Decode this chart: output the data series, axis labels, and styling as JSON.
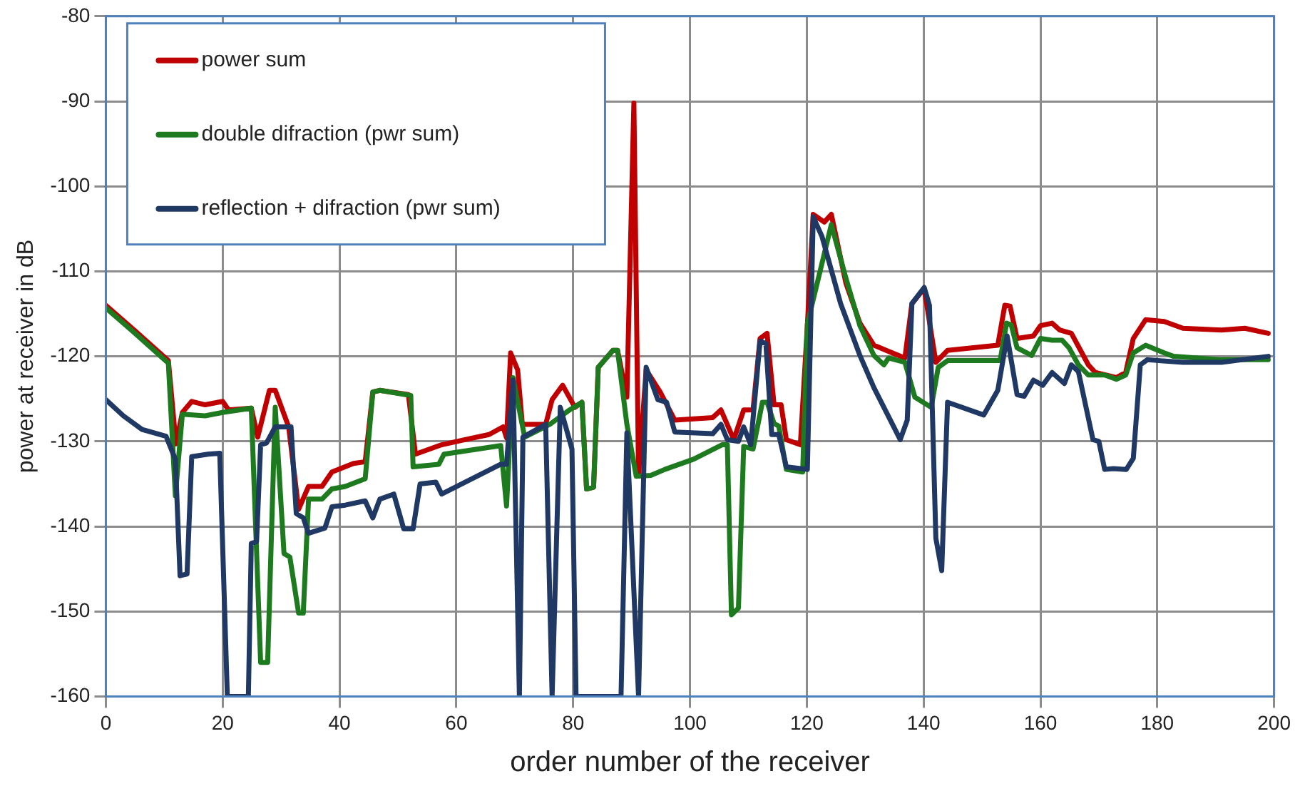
{
  "chart_data": {
    "type": "line",
    "xlabel": "order number of the receiver",
    "ylabel": "power at receiver in dB",
    "xlim": [
      0,
      200
    ],
    "ylim": [
      -160,
      -80
    ],
    "xticks": [
      0,
      20,
      40,
      60,
      80,
      100,
      120,
      140,
      160,
      180,
      200
    ],
    "yticks": [
      -160,
      -150,
      -140,
      -130,
      -120,
      -110,
      -100,
      -90,
      -80
    ],
    "grid": true,
    "legend": "top left",
    "marker": "none",
    "line_style": "solid",
    "series": [
      {
        "name": "power sum",
        "color": "#c00000",
        "x": [
          0,
          5,
          10.7,
          12,
          13.1,
          14.7,
          17,
          20,
          21,
          24.9,
          26,
          28,
          29,
          31.3,
          33,
          34.7,
          37,
          38.7,
          42.4,
          44.4,
          45.7,
          46.9,
          51.8,
          53,
          57.5,
          61.5,
          65.6,
          68,
          68.6,
          69.3,
          70.5,
          71.3,
          75.3,
          76.4,
          78.2,
          80.3,
          81.5,
          82.3,
          83.5,
          84.3,
          86.8,
          87.6,
          89.2,
          90.4,
          91.2,
          92.5,
          94.9,
          97.4,
          103.9,
          105.3,
          107.5,
          109.2,
          110.8,
          112,
          113.2,
          114.4,
          115.6,
          116.5,
          118.9,
          120.1,
          121.1,
          123,
          124.2,
          126.7,
          129.1,
          131.5,
          133.6,
          136.8,
          138,
          140.1,
          142.1,
          144.1,
          152.7,
          153.9,
          154.8,
          156,
          158.8,
          160,
          162,
          163.3,
          165.3,
          168.2,
          169.4,
          173,
          174.6,
          175.9,
          178,
          181.2,
          184.4,
          191,
          195,
          199
        ],
        "values": [
          -114,
          -117,
          -120.5,
          -130.3,
          -126.6,
          -125.3,
          -125.7,
          -125.3,
          -126.3,
          -126.1,
          -129.5,
          -124,
          -124,
          -128.3,
          -138,
          -135.3,
          -135.3,
          -133.6,
          -132.6,
          -132.4,
          -124.2,
          -124,
          -124.5,
          -131.5,
          -130.4,
          -129.8,
          -129.2,
          -128.3,
          -129.6,
          -119.6,
          -121.6,
          -128,
          -128,
          -125.1,
          -123.4,
          -126,
          -125.4,
          -135.6,
          -135.4,
          -121.3,
          -119.3,
          -119.3,
          -124.8,
          -90.2,
          -133.9,
          -121.6,
          -124.2,
          -127.5,
          -127.2,
          -126.3,
          -129.8,
          -126.3,
          -126.3,
          -117.9,
          -117.3,
          -125.7,
          -125.7,
          -129.8,
          -130.4,
          -116.4,
          -103.3,
          -104.2,
          -103.3,
          -111.4,
          -116.1,
          -118.7,
          -119.3,
          -120.2,
          -113.8,
          -112,
          -120.7,
          -119.3,
          -118.7,
          -114,
          -114.1,
          -117.9,
          -117.6,
          -116.4,
          -116.1,
          -116.9,
          -117.3,
          -121,
          -121.9,
          -122.5,
          -121.9,
          -117.9,
          -115.7,
          -115.9,
          -116.7,
          -116.9,
          -116.7,
          -117.3
        ]
      },
      {
        "name": "double difraction (pwr sum)",
        "color": "#1e7a1e",
        "x": [
          0,
          5,
          10.7,
          11.9,
          13.1,
          17,
          20,
          24.9,
          26.5,
          27.7,
          29,
          30.5,
          31.5,
          33,
          33.8,
          34.7,
          37,
          38.7,
          41,
          44.4,
          45.7,
          46.9,
          52.2,
          52.6,
          57,
          57.9,
          67.6,
          68.6,
          69.7,
          71.7,
          76,
          79.4,
          81.5,
          82.3,
          83.5,
          84.3,
          86.8,
          87.6,
          89.2,
          90.8,
          93.3,
          95.7,
          100.6,
          105.5,
          106.4,
          107.1,
          108.3,
          109.2,
          110.8,
          112.4,
          113.2,
          114.4,
          115.2,
          116.5,
          119.3,
          120.1,
          124.2,
          126.7,
          129.1,
          131.5,
          133.2,
          134,
          136.8,
          138.5,
          141.3,
          142.5,
          144.1,
          153.1,
          154.2,
          155,
          156,
          158.5,
          160,
          162,
          163.7,
          164.9,
          166.5,
          168.2,
          171,
          173,
          174.6,
          175.9,
          178,
          181.2,
          182.8,
          191,
          199
        ],
        "values": [
          -114.3,
          -117.3,
          -120.8,
          -136.4,
          -126.8,
          -127,
          -126.6,
          -126.1,
          -156,
          -156,
          -126,
          -143.2,
          -143.6,
          -150.2,
          -150.2,
          -136.8,
          -136.8,
          -135.6,
          -135.3,
          -134.4,
          -124.2,
          -124,
          -124.6,
          -133,
          -132.7,
          -131.5,
          -130.5,
          -137.6,
          -122.5,
          -129.5,
          -128,
          -126.3,
          -125.4,
          -135.6,
          -135.4,
          -121.3,
          -119.3,
          -119.3,
          -128,
          -134.1,
          -134,
          -133.3,
          -132.1,
          -130.4,
          -130.4,
          -150.4,
          -149.6,
          -130.6,
          -130.9,
          -125.4,
          -125.4,
          -127.9,
          -128.2,
          -133.3,
          -133.6,
          -116.2,
          -104.5,
          -110.8,
          -116.4,
          -119.9,
          -121,
          -120.2,
          -120.7,
          -124.8,
          -126,
          -121.3,
          -120.5,
          -120.5,
          -116.1,
          -116.3,
          -119,
          -119.9,
          -117.9,
          -118.1,
          -118.1,
          -119,
          -121,
          -122.2,
          -122.2,
          -122.7,
          -122.2,
          -119.6,
          -118.7,
          -119.6,
          -120,
          -120.4,
          -120.4
        ]
      },
      {
        "name": "reflection + difraction (pwr sum)",
        "color": "#1f3864",
        "x": [
          0,
          3,
          6.2,
          10.3,
          11.9,
          12.7,
          13.9,
          14.7,
          17.5,
          19.5,
          20.8,
          24.4,
          24.9,
          25.8,
          26.5,
          27.5,
          29,
          31.7,
          32.6,
          33.8,
          34.7,
          37.5,
          38.7,
          41,
          44.4,
          45.7,
          46.9,
          49.3,
          51,
          52.6,
          53.8,
          56.5,
          57.5,
          67.6,
          68.6,
          69.7,
          70.8,
          71.4,
          75.3,
          76.4,
          77.8,
          79.8,
          80.5,
          88.2,
          89.2,
          91.2,
          92.5,
          94.5,
          96,
          97.4,
          103.9,
          105.3,
          106.4,
          108.3,
          109.2,
          110.4,
          112,
          113,
          114,
          115.2,
          116.5,
          120.1,
          121.1,
          122.6,
          125.8,
          129.1,
          131.5,
          136,
          137.2,
          138,
          140.1,
          141,
          142.1,
          143.1,
          144.1,
          150.3,
          152.7,
          154.3,
          156,
          157.2,
          158.8,
          160.4,
          162,
          164.1,
          165.3,
          166.5,
          169,
          170,
          171,
          172.5,
          174.7,
          175.9,
          177.1,
          178.3,
          184.4,
          191,
          199
        ],
        "values": [
          -125.1,
          -127,
          -128.6,
          -129.4,
          -132.1,
          -145.8,
          -145.6,
          -131.8,
          -131.5,
          -131.4,
          -160,
          -160,
          -142,
          -141.8,
          -130.4,
          -130.2,
          -128.3,
          -128.3,
          -138.5,
          -139,
          -140.8,
          -140.2,
          -137.7,
          -137.5,
          -137,
          -139,
          -136.8,
          -136.2,
          -140.3,
          -140.3,
          -135,
          -134.8,
          -136.2,
          -132.7,
          -132.7,
          -122.8,
          -160,
          -129.5,
          -128,
          -160,
          -126,
          -130.9,
          -160,
          -160,
          -129,
          -160,
          -121.3,
          -125.1,
          -125.4,
          -128.9,
          -129.1,
          -128,
          -129.8,
          -130,
          -128.3,
          -130.4,
          -118.2,
          -118.5,
          -129.2,
          -129.2,
          -133,
          -133.3,
          -103.6,
          -105.9,
          -113.8,
          -119.9,
          -123.7,
          -129.8,
          -127.5,
          -113.8,
          -111.9,
          -114,
          -141.4,
          -145.2,
          -125.4,
          -126.9,
          -124,
          -117.6,
          -124.5,
          -124.7,
          -122.8,
          -123.4,
          -121.9,
          -123.2,
          -121,
          -121.8,
          -129.8,
          -130,
          -133.3,
          -133.2,
          -133.3,
          -132,
          -121,
          -120.4,
          -120.7,
          -120.7,
          -120
        ]
      }
    ]
  }
}
